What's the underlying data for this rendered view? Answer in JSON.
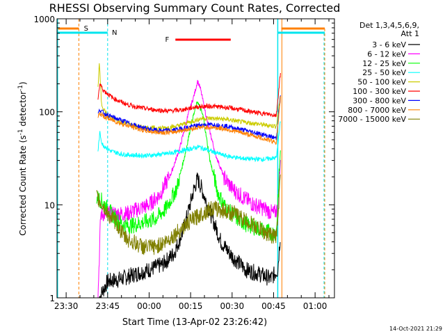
{
  "chart_data": {
    "type": "line",
    "title": "RHESSI Observing Summary Count Rates, Corrected",
    "xlabel": "Start Time (13-Apr-02 23:26:42)",
    "ylabel": "Corrected Count Rate (s",
    "ylabel_sup1": "-1",
    "ylabel_mid": " detector",
    "ylabel_sup2": "-1",
    "ylabel_end": ")",
    "y_scale": "log",
    "ylim": [
      1,
      1000
    ],
    "xlim_minutes": [
      -3.3,
      97
    ],
    "x_ticks": [
      {
        "m": 0,
        "label": "23:30"
      },
      {
        "m": 15,
        "label": "23:45"
      },
      {
        "m": 30,
        "label": "00:00"
      },
      {
        "m": 45,
        "label": "00:15"
      },
      {
        "m": 60,
        "label": "00:30"
      },
      {
        "m": 75,
        "label": "00:45"
      },
      {
        "m": 90,
        "label": "01:00"
      }
    ],
    "y_ticks": [
      {
        "v": 1,
        "label": "1"
      },
      {
        "v": 10,
        "label": "10"
      },
      {
        "v": 100,
        "label": "100"
      },
      {
        "v": 1000,
        "label": "1000"
      }
    ],
    "legend_header": [
      "Det 1,3,4,5,6,9,",
      "Att 1"
    ],
    "legend_placement": "right",
    "timestamp": "14-Oct-2021 21:29",
    "markers": [
      {
        "label": "S",
        "color": "#ff8000"
      },
      {
        "label": "N",
        "color": "#00e5ee"
      },
      {
        "label": "F",
        "color": "#ff0000"
      }
    ],
    "series": [
      {
        "name": "3 - 6 keV",
        "color": "#000000",
        "points": [
          [
            12,
            1
          ],
          [
            15,
            1.5
          ],
          [
            20,
            1.6
          ],
          [
            25,
            1.8
          ],
          [
            30,
            2
          ],
          [
            35,
            2.3
          ],
          [
            39,
            3
          ],
          [
            42,
            5
          ],
          [
            44,
            8
          ],
          [
            46,
            14
          ],
          [
            47.5,
            19
          ],
          [
            49,
            15
          ],
          [
            51,
            10
          ],
          [
            53,
            7
          ],
          [
            56,
            4
          ],
          [
            60,
            2.8
          ],
          [
            65,
            2
          ],
          [
            70,
            1.8
          ],
          [
            74,
            1.6
          ],
          [
            76.5,
            2
          ],
          [
            77.5,
            5
          ]
        ]
      },
      {
        "name": "6 - 12 keV",
        "color": "#ff00ff",
        "points": [
          [
            11.5,
            1
          ],
          [
            12.5,
            8
          ],
          [
            14,
            8
          ],
          [
            18,
            8
          ],
          [
            22,
            8
          ],
          [
            26,
            9
          ],
          [
            30,
            10
          ],
          [
            34,
            13
          ],
          [
            38,
            22
          ],
          [
            41,
            40
          ],
          [
            44,
            90
          ],
          [
            46.5,
            160
          ],
          [
            47.5,
            215
          ],
          [
            48.5,
            180
          ],
          [
            51,
            80
          ],
          [
            54,
            35
          ],
          [
            57,
            20
          ],
          [
            60,
            15
          ],
          [
            64,
            12
          ],
          [
            68,
            10
          ],
          [
            72,
            9
          ],
          [
            75,
            8
          ],
          [
            76.5,
            9
          ],
          [
            77.5,
            30
          ]
        ]
      },
      {
        "name": "12 - 25 keV",
        "color": "#00ff00",
        "points": [
          [
            11,
            12
          ],
          [
            13,
            11
          ],
          [
            15,
            9
          ],
          [
            18,
            7
          ],
          [
            21,
            6
          ],
          [
            24,
            6
          ],
          [
            28,
            6.5
          ],
          [
            32,
            7
          ],
          [
            36,
            9
          ],
          [
            40,
            15
          ],
          [
            43,
            35
          ],
          [
            45.5,
            80
          ],
          [
            47.5,
            130
          ],
          [
            49.5,
            90
          ],
          [
            52,
            30
          ],
          [
            55,
            13
          ],
          [
            58,
            9
          ],
          [
            62,
            7
          ],
          [
            66,
            6
          ],
          [
            70,
            5.5
          ],
          [
            74,
            5
          ],
          [
            76,
            5
          ],
          [
            77.5,
            40
          ]
        ]
      },
      {
        "name": "25 - 50 keV",
        "color": "#00ffff",
        "points": [
          [
            11.5,
            38
          ],
          [
            12.2,
            60
          ],
          [
            13,
            45
          ],
          [
            16,
            38
          ],
          [
            20,
            35
          ],
          [
            25,
            34
          ],
          [
            30,
            34
          ],
          [
            35,
            35
          ],
          [
            40,
            37
          ],
          [
            45,
            40
          ],
          [
            48,
            42
          ],
          [
            52,
            38
          ],
          [
            57,
            34
          ],
          [
            62,
            32
          ],
          [
            67,
            31
          ],
          [
            72,
            31
          ],
          [
            76,
            32
          ],
          [
            77.5,
            80
          ]
        ]
      },
      {
        "name": "50 - 100 keV",
        "color": "#cccc00",
        "points": [
          [
            11.5,
            180
          ],
          [
            12,
            340
          ],
          [
            12.8,
            120
          ],
          [
            15,
            90
          ],
          [
            20,
            78
          ],
          [
            25,
            70
          ],
          [
            30,
            67
          ],
          [
            35,
            67
          ],
          [
            40,
            70
          ],
          [
            45,
            78
          ],
          [
            49,
            85
          ],
          [
            53,
            85
          ],
          [
            58,
            83
          ],
          [
            63,
            78
          ],
          [
            68,
            75
          ],
          [
            72,
            72
          ],
          [
            76,
            70
          ],
          [
            77.5,
            150
          ]
        ]
      },
      {
        "name": "100 - 300 keV",
        "color": "#ff0000",
        "points": [
          [
            11.5,
            140
          ],
          [
            12.2,
            200
          ],
          [
            13.5,
            170
          ],
          [
            17,
            140
          ],
          [
            22,
            120
          ],
          [
            27,
            110
          ],
          [
            32,
            105
          ],
          [
            37,
            102
          ],
          [
            42,
            105
          ],
          [
            47,
            113
          ],
          [
            52,
            115
          ],
          [
            57,
            112
          ],
          [
            62,
            107
          ],
          [
            67,
            100
          ],
          [
            72,
            95
          ],
          [
            76,
            92
          ],
          [
            77.5,
            270
          ]
        ]
      },
      {
        "name": "300 - 800 keV",
        "color": "#0000ff",
        "points": [
          [
            11.5,
            95
          ],
          [
            12.2,
            105
          ],
          [
            14,
            95
          ],
          [
            18,
            85
          ],
          [
            23,
            75
          ],
          [
            28,
            67
          ],
          [
            33,
            63
          ],
          [
            38,
            63
          ],
          [
            43,
            67
          ],
          [
            48,
            72
          ],
          [
            53,
            73
          ],
          [
            58,
            70
          ],
          [
            63,
            65
          ],
          [
            68,
            60
          ],
          [
            73,
            55
          ],
          [
            76,
            52
          ],
          [
            77.5,
            150
          ]
        ]
      },
      {
        "name": "800 - 7000 keV",
        "color": "#ff8000",
        "points": [
          [
            11.5,
            88
          ],
          [
            12.2,
            95
          ],
          [
            14,
            88
          ],
          [
            18,
            78
          ],
          [
            23,
            70
          ],
          [
            28,
            63
          ],
          [
            33,
            60
          ],
          [
            38,
            60
          ],
          [
            43,
            64
          ],
          [
            48,
            68
          ],
          [
            53,
            68
          ],
          [
            58,
            65
          ],
          [
            63,
            60
          ],
          [
            68,
            55
          ],
          [
            73,
            50
          ],
          [
            76,
            47
          ],
          [
            77.5,
            140
          ]
        ]
      },
      {
        "name": "7000 - 15000 keV",
        "color": "#808000",
        "points": [
          [
            11,
            12
          ],
          [
            13,
            10
          ],
          [
            15,
            8
          ],
          [
            18,
            6.5
          ],
          [
            21,
            4.5
          ],
          [
            24,
            4
          ],
          [
            28,
            3.5
          ],
          [
            32,
            3.5
          ],
          [
            36,
            4
          ],
          [
            40,
            5
          ],
          [
            43,
            6
          ],
          [
            46,
            7
          ],
          [
            49,
            8
          ],
          [
            52,
            9
          ],
          [
            55,
            9
          ],
          [
            58,
            8.5
          ],
          [
            61,
            8
          ],
          [
            64,
            7
          ],
          [
            68,
            6
          ],
          [
            72,
            5
          ],
          [
            76,
            4.5
          ],
          [
            77.5,
            20
          ]
        ]
      }
    ]
  }
}
